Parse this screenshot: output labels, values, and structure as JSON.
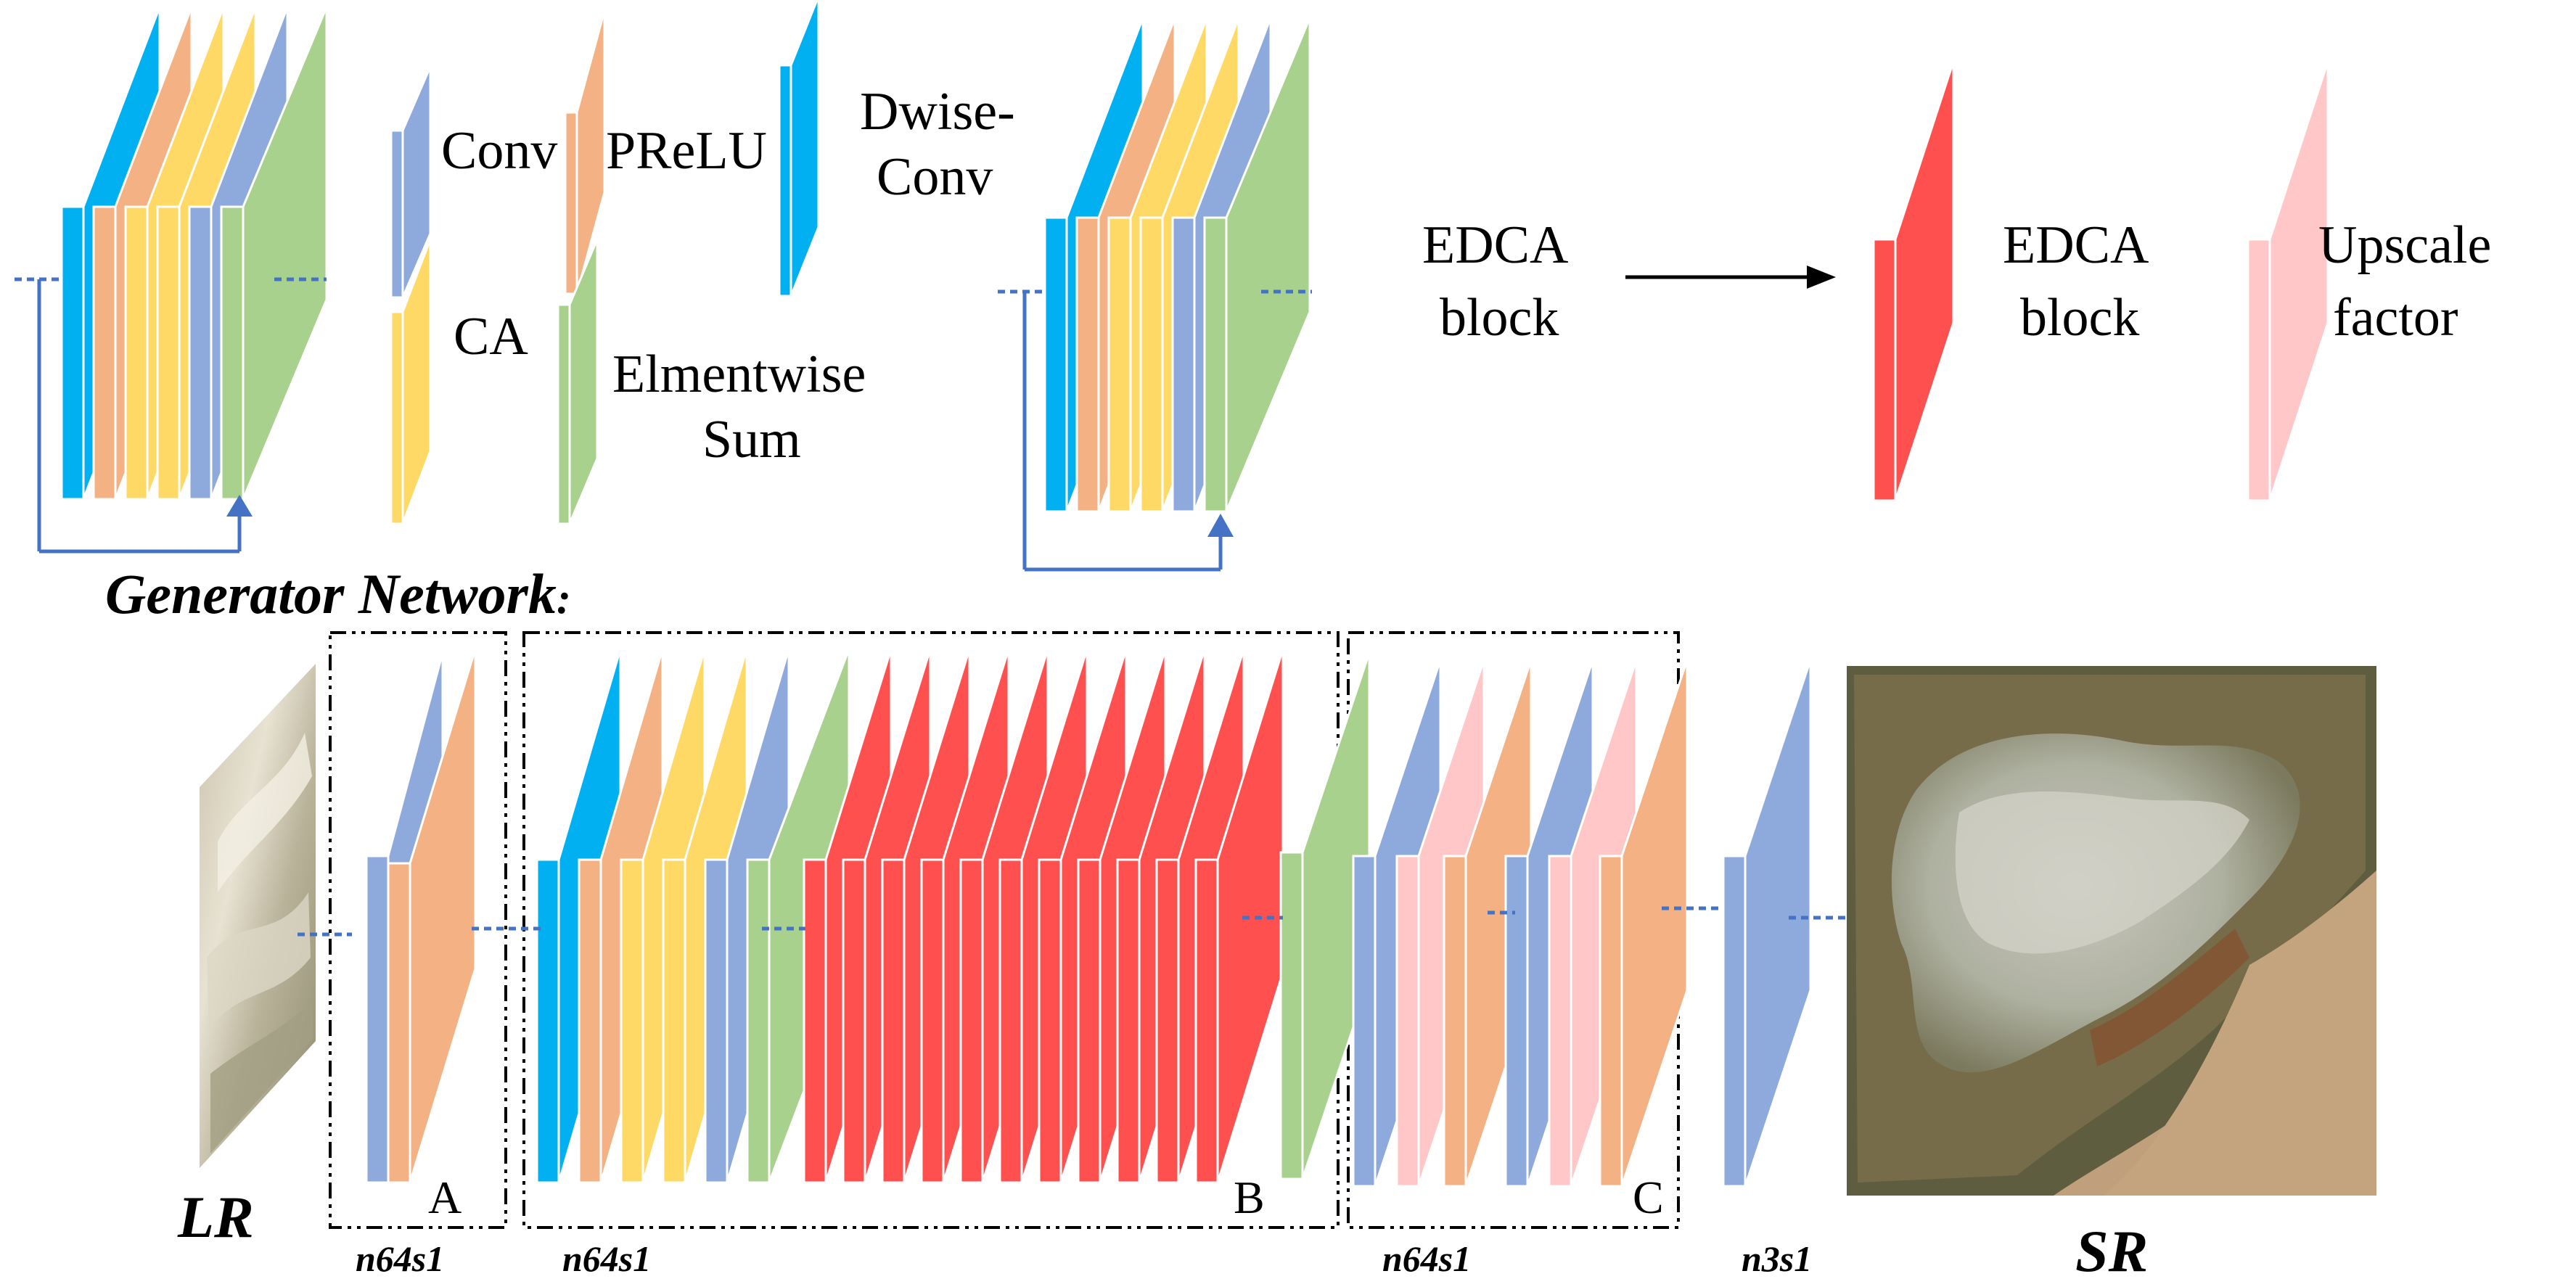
{
  "legend": {
    "conv": "Conv",
    "prelu": "PReLU",
    "dwise_line1": "Dwise-",
    "dwise_line2": "Conv",
    "ca": "CA",
    "sum_line1": "Elmentwise",
    "sum_line2": "Sum",
    "edca_left_line1": "EDCA",
    "edca_left_line2": "block",
    "edca_right_line1": "EDCA",
    "edca_right_line2": "block",
    "upscale_line1": "Upscale",
    "upscale_line2": "factor"
  },
  "generator": {
    "title": "Generator Network",
    "title_colon": ":",
    "lr_label": "LR",
    "sr_label": "SR",
    "section_a": "A",
    "section_b": "B",
    "section_c": "C",
    "n_a": "n64s1",
    "n_b": "n64s1",
    "n_c": "n64s1",
    "n_final": "n3s1"
  },
  "colors": {
    "conv": "#8EA9DB",
    "prelu": "#F4B183",
    "dwise": "#00B0F0",
    "ca": "#FFD966",
    "sum": "#A9D18E",
    "edca": "#FF5050",
    "upscale": "#FFC7C7",
    "connector": "#4472C4"
  }
}
